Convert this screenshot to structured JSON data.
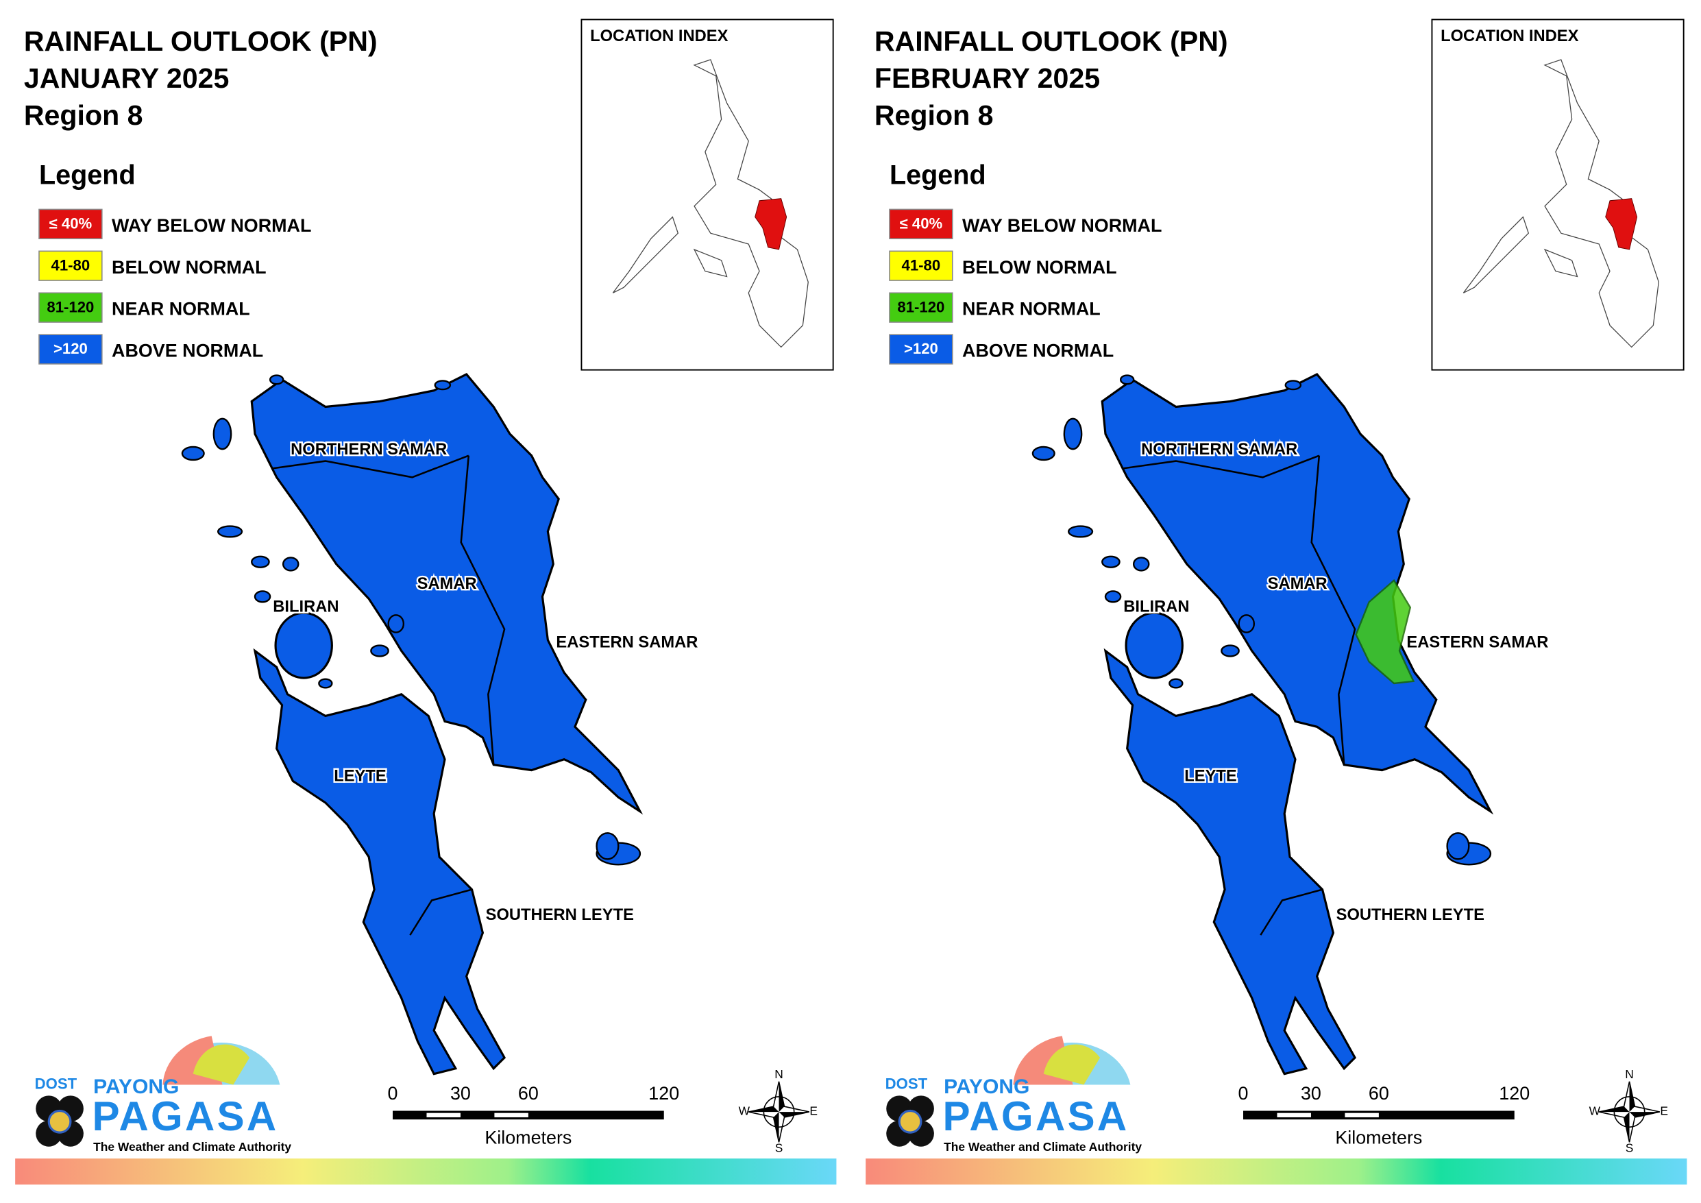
{
  "panels": [
    {
      "title": [
        "RAINFALL OUTLOOK (PN)",
        "JANUARY 2025",
        "Region 8"
      ],
      "location_index": "LOCATION INDEX",
      "legend": {
        "title": "Legend",
        "items": [
          {
            "range": "≤ 40%",
            "label": "WAY BELOW NORMAL",
            "color": "#e01010"
          },
          {
            "range": "41-80",
            "label": "BELOW NORMAL",
            "color": "#ffff00"
          },
          {
            "range": "81-120",
            "label": "NEAR NORMAL",
            "color": "#44cc11"
          },
          {
            "range": ">120",
            "label": "ABOVE NORMAL",
            "color": "#0a5ce6"
          }
        ]
      },
      "regions": [
        "NORTHERN SAMAR",
        "SAMAR",
        "BILIRAN",
        "EASTERN SAMAR",
        "LEYTE",
        "SOUTHERN LEYTE"
      ],
      "scale": {
        "ticks": [
          0,
          30,
          60,
          120
        ],
        "unit": "Kilometers"
      },
      "compass": [
        "N",
        "E",
        "S",
        "W"
      ],
      "logo": {
        "dost": "DOST",
        "payong": "PAYONG",
        "pagasa": "PAGASA",
        "tagline": "The Weather and Climate Authority"
      }
    },
    {
      "title": [
        "RAINFALL OUTLOOK (PN)",
        "FEBRUARY 2025",
        "Region 8"
      ],
      "location_index": "LOCATION INDEX",
      "legend": {
        "title": "Legend",
        "items": [
          {
            "range": "≤ 40%",
            "label": "WAY BELOW NORMAL",
            "color": "#e01010"
          },
          {
            "range": "41-80",
            "label": "BELOW NORMAL",
            "color": "#ffff00"
          },
          {
            "range": "81-120",
            "label": "NEAR NORMAL",
            "color": "#44cc11"
          },
          {
            "range": ">120",
            "label": "ABOVE NORMAL",
            "color": "#0a5ce6"
          }
        ]
      },
      "regions": [
        "NORTHERN SAMAR",
        "SAMAR",
        "BILIRAN",
        "EASTERN SAMAR",
        "LEYTE",
        "SOUTHERN LEYTE"
      ],
      "scale": {
        "ticks": [
          0,
          30,
          60,
          120
        ],
        "unit": "Kilometers"
      },
      "compass": [
        "N",
        "E",
        "S",
        "W"
      ],
      "logo": {
        "dost": "DOST",
        "payong": "PAYONG",
        "pagasa": "PAGASA",
        "tagline": "The Weather and Climate Authority"
      }
    }
  ]
}
